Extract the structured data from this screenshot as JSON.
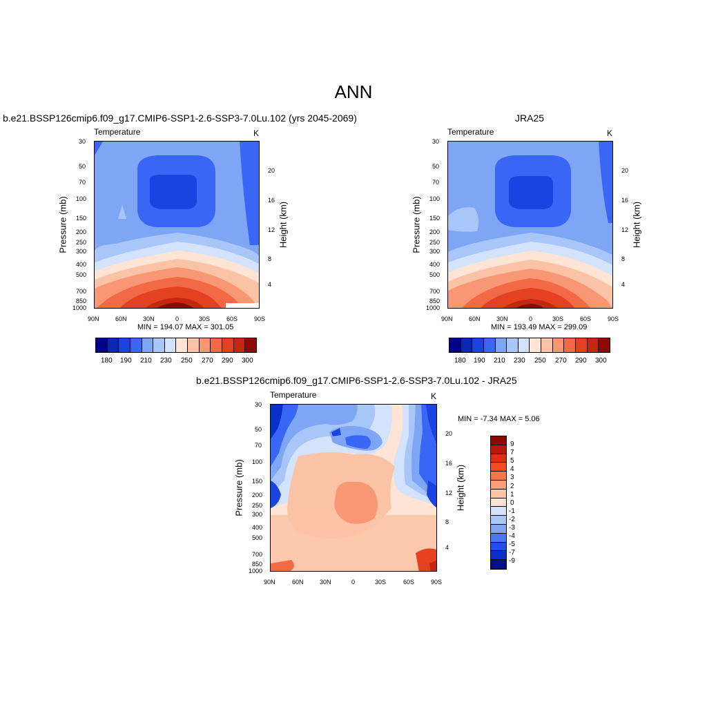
{
  "figure": {
    "title": "ANN"
  },
  "chart_data": [
    {
      "type": "contour",
      "panel_title": "b.e21.BSSP126cmip6.f09_g17.CMIP6-SSP1-2.6-SSP3-7.0Lu.102 (yrs 2045-2069)",
      "variable": "Temperature",
      "units": "K",
      "ylabel": "Pressure (mb)",
      "ylabel_right": "Height (km)",
      "x_ticks": [
        "90N",
        "60N",
        "30N",
        "0",
        "30S",
        "60S",
        "90S"
      ],
      "y_ticks": [
        "30",
        "50",
        "70",
        "100",
        "150",
        "200",
        "250",
        "300",
        "400",
        "500",
        "700",
        "850",
        "1000"
      ],
      "y_ticks_right": [
        "20",
        "16",
        "12",
        "8",
        "4"
      ],
      "stats": "MIN = 194.07  MAX = 301.05",
      "min": 194.07,
      "max": 301.05,
      "colorbar_levels": [
        "180",
        "190",
        "210",
        "230",
        "250",
        "270",
        "290",
        "300"
      ]
    },
    {
      "type": "contour",
      "panel_title": "JRA25",
      "variable": "Temperature",
      "units": "K",
      "ylabel": "Pressure (mb)",
      "ylabel_right": "Height (km)",
      "x_ticks": [
        "90N",
        "60N",
        "30N",
        "0",
        "30S",
        "60S",
        "90S"
      ],
      "y_ticks": [
        "30",
        "50",
        "70",
        "100",
        "150",
        "200",
        "250",
        "300",
        "400",
        "500",
        "700",
        "850",
        "1000"
      ],
      "y_ticks_right": [
        "20",
        "16",
        "12",
        "8",
        "4"
      ],
      "stats": "MIN = 193.49  MAX = 299.09",
      "min": 193.49,
      "max": 299.09,
      "colorbar_levels": [
        "180",
        "190",
        "210",
        "230",
        "250",
        "270",
        "290",
        "300"
      ]
    },
    {
      "type": "contour",
      "panel_title": "b.e21.BSSP126cmip6.f09_g17.CMIP6-SSP1-2.6-SSP3-7.0Lu.102 - JRA25",
      "variable": "Temperature",
      "units": "K",
      "ylabel": "Pressure (mb)",
      "ylabel_right": "Height (km)",
      "x_ticks": [
        "90N",
        "60N",
        "30N",
        "0",
        "30S",
        "60S",
        "90S"
      ],
      "y_ticks": [
        "30",
        "50",
        "70",
        "100",
        "150",
        "200",
        "250",
        "300",
        "400",
        "500",
        "700",
        "850",
        "1000"
      ],
      "y_ticks_right": [
        "20",
        "16",
        "12",
        "8",
        "4"
      ],
      "stats": "MIN =  -7.34  MAX =   5.06",
      "min": -7.34,
      "max": 5.06,
      "colorbar_levels": [
        "9",
        "7",
        "5",
        "4",
        "3",
        "2",
        "1",
        "0",
        "-1",
        "-2",
        "-3",
        "-4",
        "-5",
        "-7",
        "-9"
      ]
    }
  ],
  "colors": {
    "abs_scale": [
      "#00008c",
      "#0a26b4",
      "#1a44e0",
      "#3a66f5",
      "#7ea6f5",
      "#a9c6f8",
      "#d3e3fb",
      "#fde4d4",
      "#fbc3a6",
      "#f89774",
      "#f26a45",
      "#e44120",
      "#c62710",
      "#8c0a00"
    ],
    "diff_scale": [
      "#8c0a00",
      "#b81808",
      "#dc3010",
      "#f44c1c",
      "#f8764c",
      "#f9a07a",
      "#fbc6a6",
      "#fde4d4",
      "#d3e3fb",
      "#a9c6f8",
      "#7ea6f5",
      "#4a78f2",
      "#2050e8",
      "#0a30c8",
      "#00108c"
    ]
  }
}
